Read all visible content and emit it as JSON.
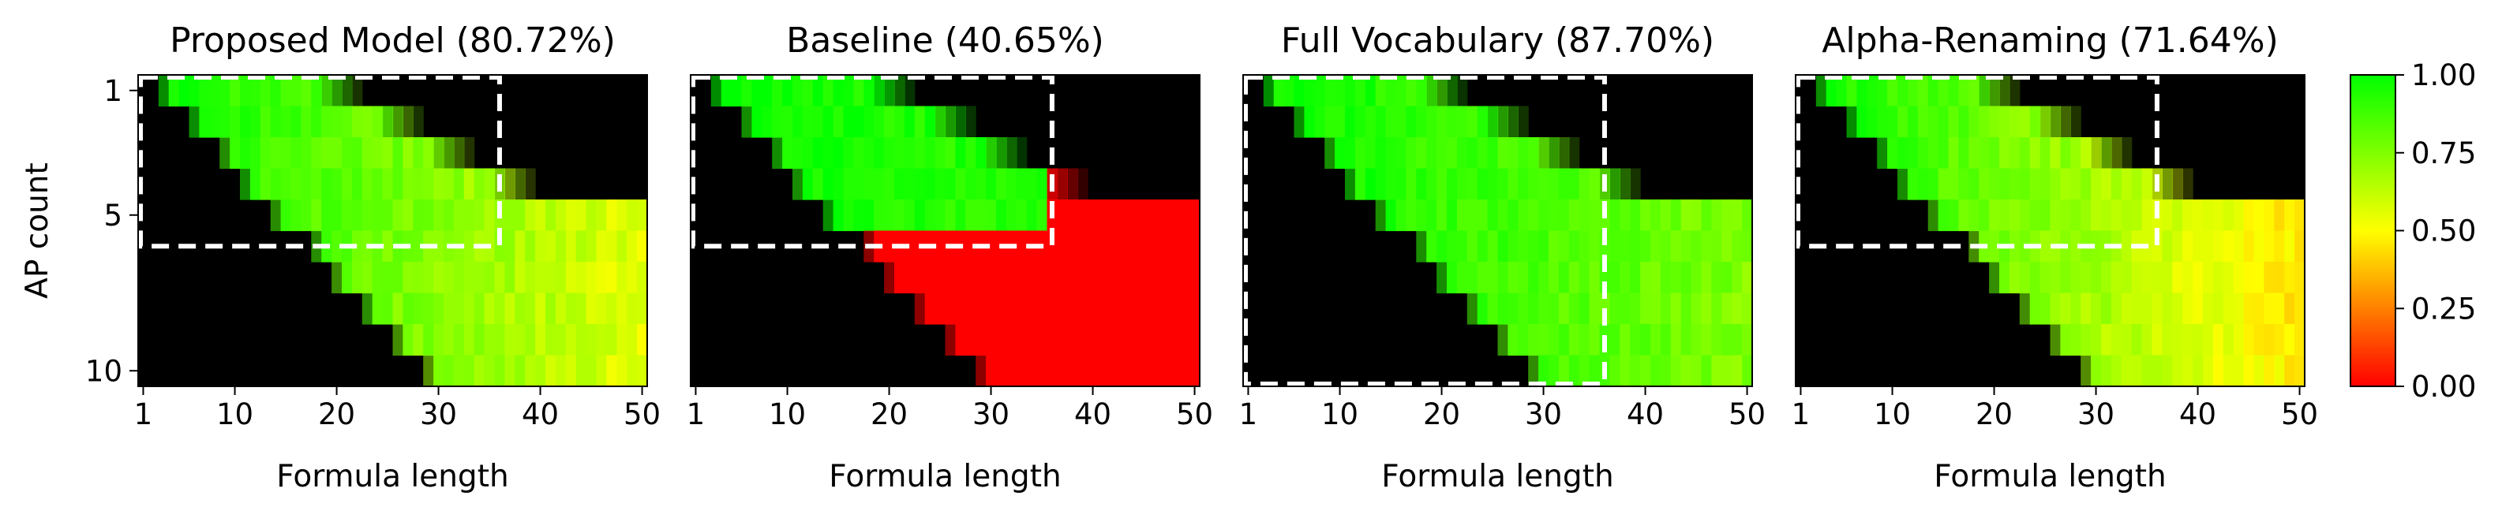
{
  "chart_data": {
    "type": "heatmap",
    "xlabel": "Formula length",
    "ylabel": "AP count",
    "x_range": [
      1,
      50
    ],
    "y_range": [
      1,
      10
    ],
    "x_ticks": [
      "1",
      "10",
      "20",
      "30",
      "40",
      "50"
    ],
    "y_ticks": [
      "1",
      "5",
      "10"
    ],
    "colormap": {
      "low": "#ff0000",
      "mid": "#ffff00",
      "high": "#00ff00",
      "empty": "#000000"
    },
    "colorbar": {
      "ticks": [
        "0.00",
        "0.25",
        "0.50",
        "0.75",
        "1.00"
      ],
      "range": [
        0,
        1
      ]
    },
    "grid": false,
    "panels": [
      {
        "title": "Proposed Model (80.72%)",
        "training_region": {
          "max_length": 35,
          "max_ap": 5
        },
        "value_at_min_length": 1.0,
        "value_at_max_length": 0.55,
        "out_of_range_value": null,
        "xlabel": "Formula length",
        "ylabel": "AP count",
        "show_y_ticks": true
      },
      {
        "title": "Baseline (40.65%)",
        "training_region": {
          "max_length": 35,
          "max_ap": 5
        },
        "value_at_min_length": 1.0,
        "value_at_max_length": 0.88,
        "out_of_range_value": 0.0,
        "xlabel": "Formula length",
        "ylabel": "",
        "show_y_ticks": false
      },
      {
        "title": "Full Vocabulary (87.70%)",
        "training_region": {
          "max_length": 35,
          "max_ap": 10
        },
        "value_at_min_length": 1.0,
        "value_at_max_length": 0.75,
        "out_of_range_value": null,
        "xlabel": "Formula length",
        "ylabel": "",
        "show_y_ticks": false
      },
      {
        "title": "Alpha-Renaming (71.64%)",
        "training_region": {
          "max_length": 35,
          "max_ap": 5
        },
        "value_at_min_length": 1.0,
        "value_at_max_length": 0.45,
        "out_of_range_value": null,
        "xlabel": "Formula length",
        "ylabel": "",
        "show_y_ticks": false
      }
    ]
  }
}
